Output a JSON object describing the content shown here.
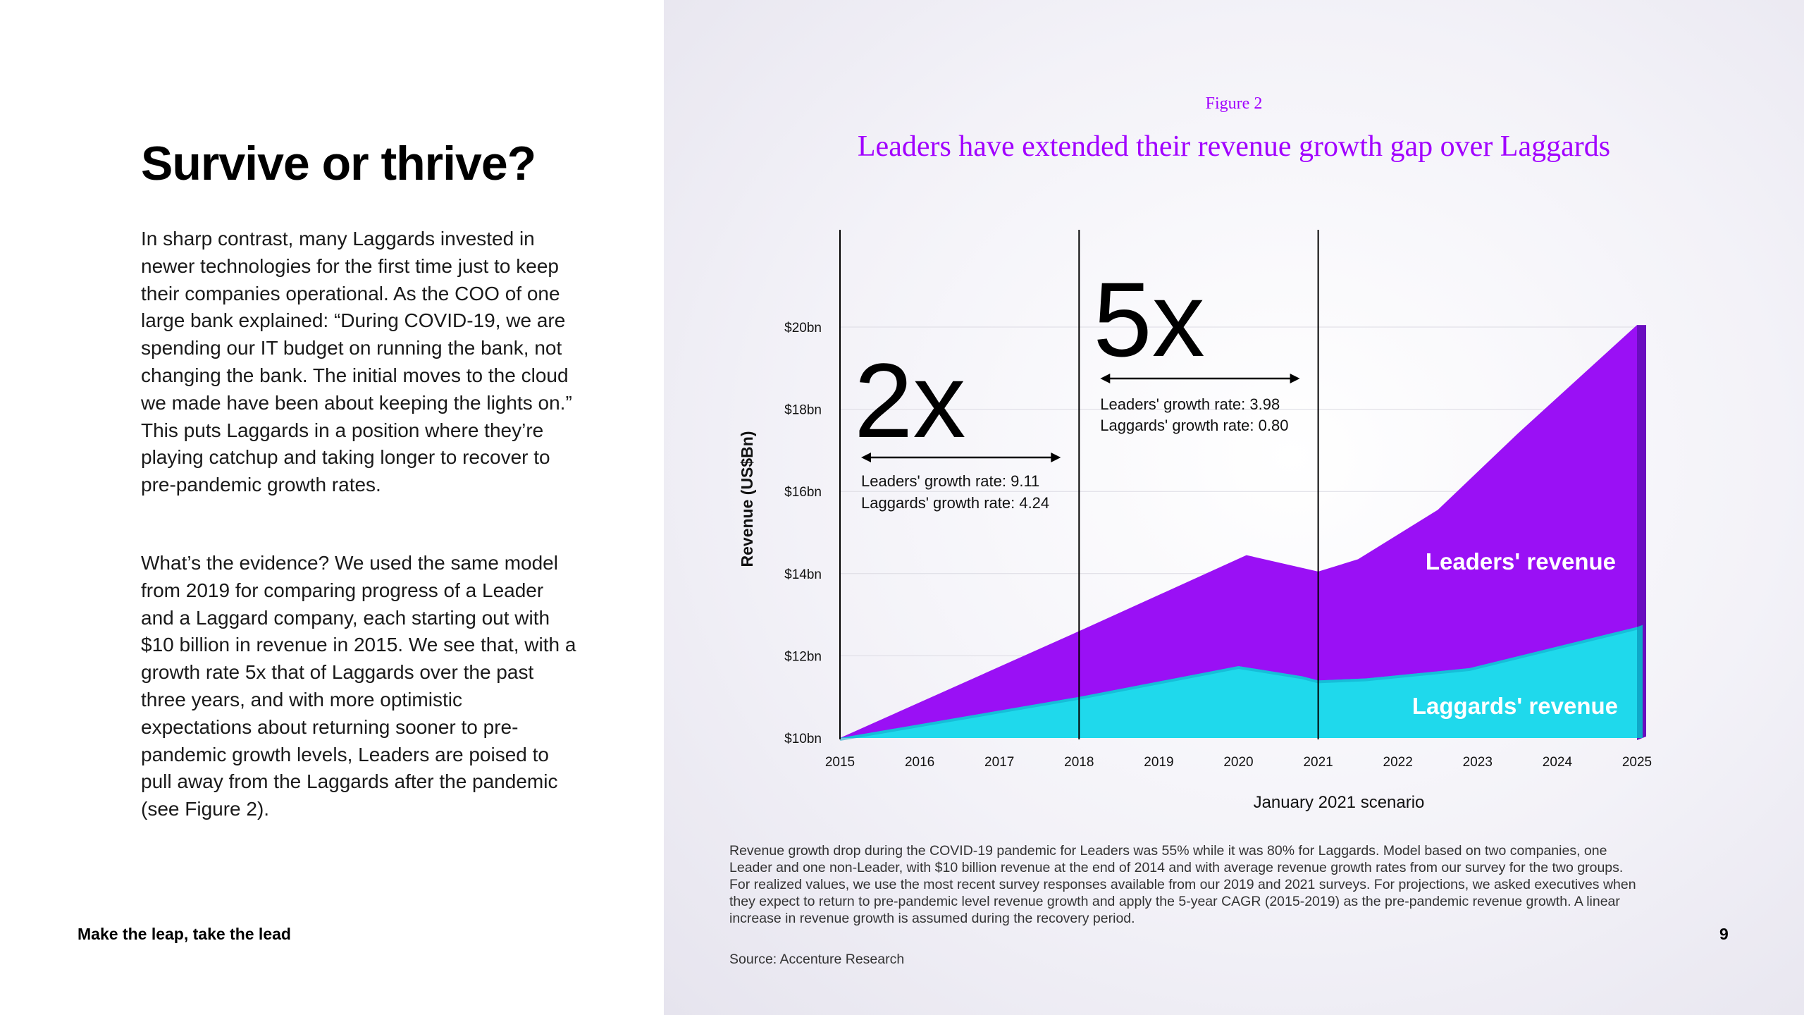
{
  "left": {
    "heading": "Survive or thrive?",
    "paragraph1": "In sharp contrast, many Laggards invested in newer technologies for the first time just to keep their companies operational. As the COO of one large bank explained: “During COVID-19, we are spending our IT budget on running the bank, not changing the bank. The initial moves to the cloud we made have been about keeping the lights on.” This puts Laggards in a position where they’re playing catchup and taking longer to recover to pre-pandemic growth rates.",
    "paragraph2": "What’s the evidence? We used the same model from 2019 for comparing progress of a Leader and a Laggard company, each starting out with $10 billion in revenue in 2015. We see that, with a growth rate 5x that of Laggards over the past three years, and with more optimistic expectations about returning sooner to pre-pandemic growth levels, Leaders are poised to pull away from the Laggards after the pandemic (see Figure 2)."
  },
  "footer": {
    "left": "Make the leap, take the lead",
    "page": "9"
  },
  "figure": {
    "label": "Figure 2",
    "title": "Leaders have extended their revenue growth gap over Laggards",
    "note": "Revenue growth drop during the COVID-19 pandemic for Leaders was 55% while it was 80% for Laggards. Model based on two companies, one Leader and one non-Leader, with $10 billion revenue at the end of 2014 and with average revenue growth rates from our survey for the two groups. For realized values, we use the most recent survey responses available from our 2019 and 2021 surveys. For projections, we asked executives when they expect to return to pre-pandemic level revenue growth and apply the 5-year CAGR (2015-2019) as the pre-pandemic revenue growth. A linear increase in revenue growth is assumed during the recovery period.",
    "source": "Source: Accenture Research"
  },
  "colors": {
    "accent": "#a100ff",
    "leaders_fill": "#9a10f5",
    "leaders_side": "#6a0dbf",
    "laggards_fill": "#1fd9ec",
    "laggards_side": "#0fa8c8"
  },
  "chart_data": {
    "type": "area",
    "xlabel": "January 2021 scenario",
    "ylabel": "Revenue (US$Bn)",
    "ylim": [
      10,
      20
    ],
    "yticks": [
      "$10bn",
      "$12bn",
      "$14bn",
      "$16bn",
      "$18bn",
      "$20bn"
    ],
    "xticks": [
      "2015",
      "2016",
      "2017",
      "2018",
      "2019",
      "2020",
      "2021",
      "2022",
      "2023",
      "2024",
      "2025"
    ],
    "grid": "horizontal",
    "series": [
      {
        "name": "Leaders' revenue",
        "points": [
          [
            2015,
            10.0
          ],
          [
            2018,
            12.6
          ],
          [
            2020.1,
            14.45
          ],
          [
            2021,
            14.05
          ],
          [
            2021.5,
            14.35
          ],
          [
            2022.5,
            15.55
          ],
          [
            2023.5,
            17.4
          ],
          [
            2025,
            20.05
          ]
        ]
      },
      {
        "name": "Laggards' revenue",
        "points": [
          [
            2015,
            10.0
          ],
          [
            2018,
            11.0
          ],
          [
            2020,
            11.75
          ],
          [
            2020.8,
            11.5
          ],
          [
            2021,
            11.4
          ],
          [
            2021.6,
            11.45
          ],
          [
            2022.9,
            11.7
          ],
          [
            2025,
            12.7
          ]
        ]
      }
    ],
    "annotations": [
      {
        "big": "2x",
        "line1": "Leaders' growth rate: 9.11",
        "line2": "Laggards' growth rate: 4.24",
        "from": 2015,
        "to": 2018
      },
      {
        "big": "5x",
        "line1": "Leaders' growth rate: 3.98",
        "line2": "Laggards' growth rate: 0.80",
        "from": 2018,
        "to": 2021
      }
    ],
    "period_dividers": [
      2015,
      2018,
      2021
    ]
  }
}
